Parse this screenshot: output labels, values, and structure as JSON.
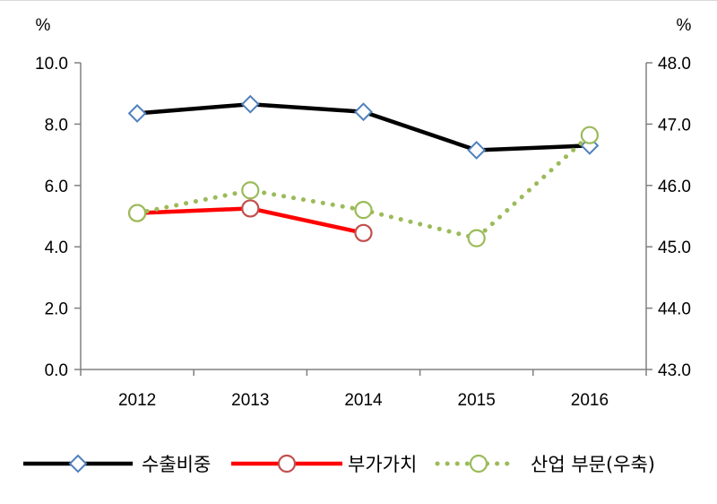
{
  "chart_data": {
    "type": "line",
    "categories": [
      "2012",
      "2013",
      "2014",
      "2015",
      "2016"
    ],
    "left_axis": {
      "unit": "%",
      "ylim": [
        0,
        10
      ],
      "ticks": [
        "0.0",
        "2.0",
        "4.0",
        "6.0",
        "8.0",
        "10.0"
      ]
    },
    "right_axis": {
      "unit": "%",
      "ylim": [
        43,
        48
      ],
      "ticks": [
        "43.0",
        "44.0",
        "45.0",
        "46.0",
        "47.0",
        "48.0"
      ]
    },
    "series": [
      {
        "name": "수출비중",
        "axis": "left",
        "values": [
          8.35,
          8.65,
          8.4,
          7.15,
          7.3
        ],
        "color": "#000000",
        "marker": "diamond",
        "marker_color": "#4f81bd",
        "line_style": "solid"
      },
      {
        "name": "부가가치",
        "axis": "left",
        "values": [
          5.1,
          5.25,
          4.45,
          null,
          null
        ],
        "color": "#ff0000",
        "marker": "circle",
        "marker_color": "#c0504d",
        "line_style": "solid"
      },
      {
        "name": "산업 부문(우축)",
        "axis": "right",
        "values": [
          45.55,
          45.92,
          45.6,
          45.14,
          46.82
        ],
        "color": "#9bbb59",
        "marker": "circle",
        "marker_color": "#9bbb59",
        "line_style": "dotted"
      }
    ],
    "grid": false,
    "legend_position": "bottom"
  }
}
